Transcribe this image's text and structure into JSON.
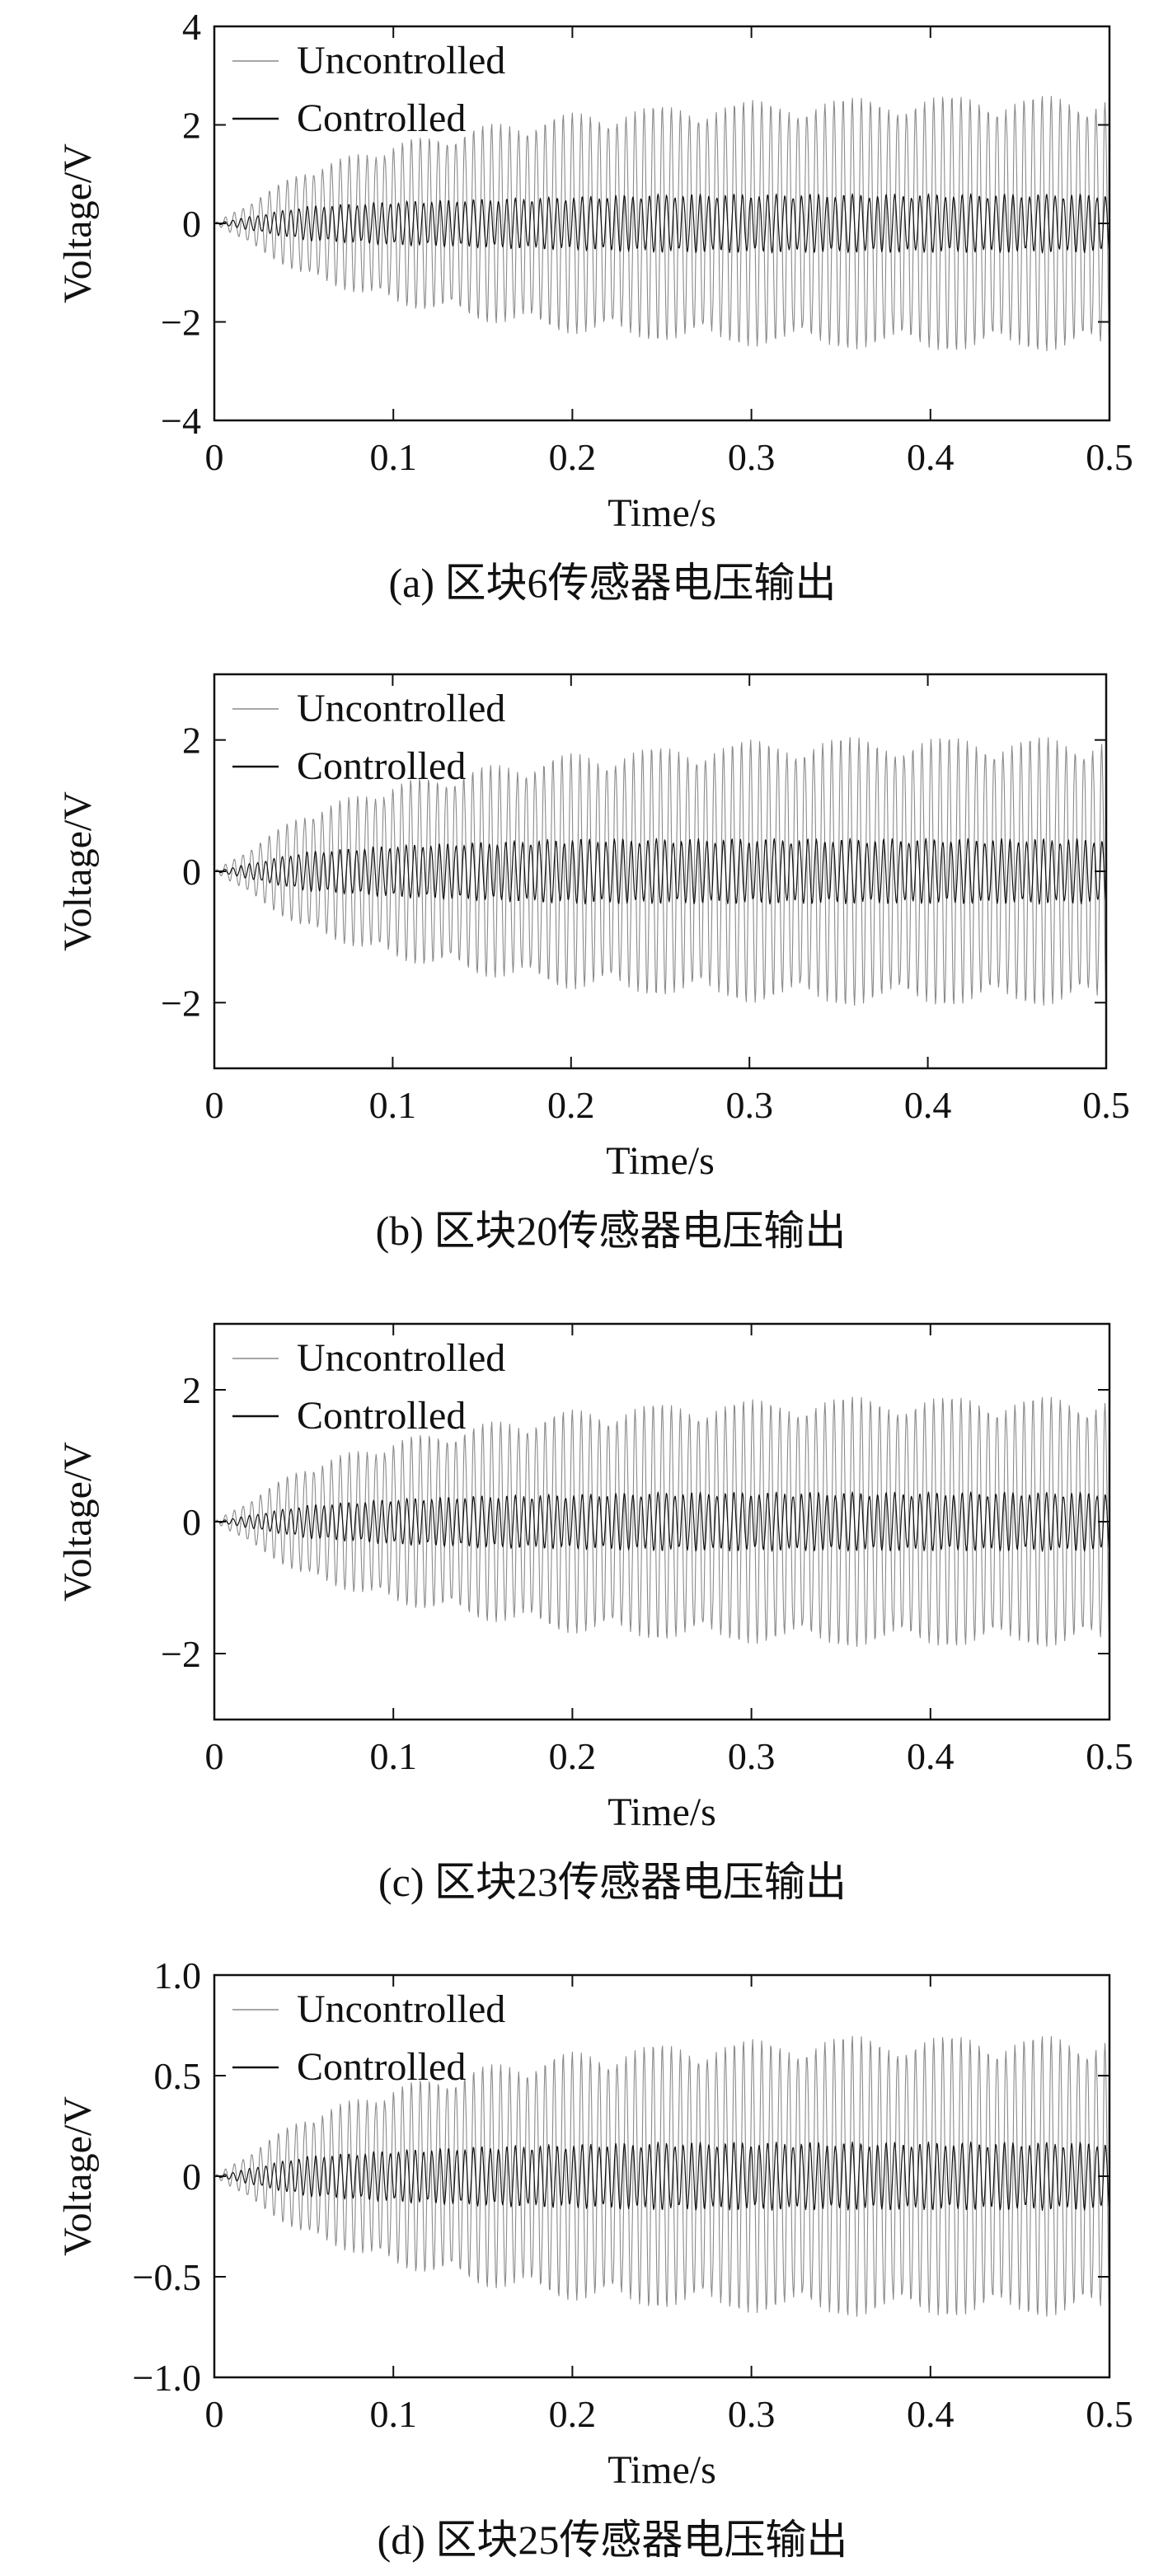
{
  "chart_data": [
    {
      "type": "line",
      "caption": "(a) 区块6传感器电压输出",
      "xlabel": "Time/s",
      "ylabel": "Voltage/V",
      "xlim": [
        0,
        0.5
      ],
      "ylim": [
        -4,
        4
      ],
      "xticks": [
        0,
        0.1,
        0.2,
        0.3,
        0.4,
        0.5
      ],
      "xtick_labels": [
        "0",
        "0.1",
        "0.2",
        "0.3",
        "0.4",
        "0.5"
      ],
      "yticks": [
        -4,
        -2,
        0,
        2,
        4
      ],
      "ytick_labels": [
        "−4",
        "−2",
        "0",
        "2",
        "4"
      ],
      "legend_position": "top-left",
      "grid": false,
      "series": [
        {
          "name": "Uncontrolled",
          "color": "#8a8a8a",
          "envelope": {
            "t": [
              0,
              0.05,
              0.1,
              0.15,
              0.2,
              0.25,
              0.3,
              0.35,
              0.4,
              0.45,
              0.5
            ],
            "amplitude": [
              0,
              1.1,
              1.65,
              2.0,
              2.25,
              2.4,
              2.5,
              2.55,
              2.6,
              2.6,
              2.6
            ]
          }
        },
        {
          "name": "Controlled",
          "color": "#111111",
          "envelope": {
            "t": [
              0,
              0.05,
              0.1,
              0.15,
              0.2,
              0.25,
              0.3,
              0.35,
              0.4,
              0.45,
              0.5
            ],
            "amplitude": [
              0,
              0.35,
              0.45,
              0.5,
              0.55,
              0.6,
              0.6,
              0.6,
              0.6,
              0.6,
              0.6
            ]
          }
        }
      ]
    },
    {
      "type": "line",
      "caption": "(b) 区块20传感器电压输出",
      "xlabel": "Time/s",
      "ylabel": "Voltage/V",
      "xlim": [
        0,
        0.5
      ],
      "ylim": [
        -3,
        3
      ],
      "xticks": [
        0,
        0.1,
        0.2,
        0.3,
        0.4,
        0.5
      ],
      "xtick_labels": [
        "0",
        "0.1",
        "0.2",
        "0.3",
        "0.4",
        "0.5"
      ],
      "yticks": [
        -2,
        0,
        2
      ],
      "ytick_labels": [
        "−2",
        "0",
        "2"
      ],
      "legend_position": "top-left",
      "grid": false,
      "series": [
        {
          "name": "Uncontrolled",
          "color": "#8a8a8a",
          "envelope": {
            "t": [
              0,
              0.05,
              0.1,
              0.15,
              0.2,
              0.25,
              0.3,
              0.35,
              0.4,
              0.45,
              0.5
            ],
            "amplitude": [
              0,
              0.9,
              1.35,
              1.6,
              1.8,
              1.9,
              2.0,
              2.05,
              2.05,
              2.05,
              2.05
            ]
          }
        },
        {
          "name": "Controlled",
          "color": "#111111",
          "envelope": {
            "t": [
              0,
              0.05,
              0.1,
              0.15,
              0.2,
              0.25,
              0.3,
              0.35,
              0.4,
              0.45,
              0.5
            ],
            "amplitude": [
              0,
              0.3,
              0.4,
              0.45,
              0.5,
              0.5,
              0.5,
              0.5,
              0.5,
              0.5,
              0.5
            ]
          }
        }
      ]
    },
    {
      "type": "line",
      "caption": "(c) 区块23传感器电压输出",
      "xlabel": "Time/s",
      "ylabel": "Voltage/V",
      "xlim": [
        0,
        0.5
      ],
      "ylim": [
        -3,
        3
      ],
      "xticks": [
        0,
        0.1,
        0.2,
        0.3,
        0.4,
        0.5
      ],
      "xtick_labels": [
        "0",
        "0.1",
        "0.2",
        "0.3",
        "0.4",
        "0.5"
      ],
      "yticks": [
        -2,
        0,
        2
      ],
      "ytick_labels": [
        "−2",
        "0",
        "2"
      ],
      "legend_position": "top-left",
      "grid": false,
      "series": [
        {
          "name": "Uncontrolled",
          "color": "#8a8a8a",
          "envelope": {
            "t": [
              0,
              0.05,
              0.1,
              0.15,
              0.2,
              0.25,
              0.3,
              0.35,
              0.4,
              0.45,
              0.5
            ],
            "amplitude": [
              0,
              0.85,
              1.25,
              1.5,
              1.7,
              1.8,
              1.85,
              1.9,
              1.9,
              1.9,
              1.9
            ]
          }
        },
        {
          "name": "Controlled",
          "color": "#111111",
          "envelope": {
            "t": [
              0,
              0.05,
              0.1,
              0.15,
              0.2,
              0.25,
              0.3,
              0.35,
              0.4,
              0.45,
              0.5
            ],
            "amplitude": [
              0,
              0.25,
              0.35,
              0.4,
              0.42,
              0.45,
              0.45,
              0.45,
              0.45,
              0.45,
              0.45
            ]
          }
        }
      ]
    },
    {
      "type": "line",
      "caption": "(d) 区块25传感器电压输出",
      "xlabel": "Time/s",
      "ylabel": "Voltage/V",
      "xlim": [
        0,
        0.5
      ],
      "ylim": [
        -1,
        1
      ],
      "xticks": [
        0,
        0.1,
        0.2,
        0.3,
        0.4,
        0.5
      ],
      "xtick_labels": [
        "0",
        "0.1",
        "0.2",
        "0.3",
        "0.4",
        "0.5"
      ],
      "yticks": [
        -1,
        -0.5,
        0,
        0.5,
        1
      ],
      "ytick_labels": [
        "−1.0",
        "−0.5",
        "0",
        "0.5",
        "1.0"
      ],
      "legend_position": "top-left",
      "grid": false,
      "series": [
        {
          "name": "Uncontrolled",
          "color": "#8a8a8a",
          "envelope": {
            "t": [
              0,
              0.05,
              0.1,
              0.15,
              0.2,
              0.25,
              0.3,
              0.35,
              0.4,
              0.45,
              0.5
            ],
            "amplitude": [
              0,
              0.3,
              0.45,
              0.55,
              0.62,
              0.66,
              0.68,
              0.7,
              0.7,
              0.7,
              0.7
            ]
          }
        },
        {
          "name": "Controlled",
          "color": "#111111",
          "envelope": {
            "t": [
              0,
              0.05,
              0.1,
              0.15,
              0.2,
              0.25,
              0.3,
              0.35,
              0.4,
              0.45,
              0.5
            ],
            "amplitude": [
              0,
              0.1,
              0.13,
              0.15,
              0.16,
              0.17,
              0.17,
              0.17,
              0.17,
              0.17,
              0.17
            ]
          }
        }
      ]
    }
  ]
}
